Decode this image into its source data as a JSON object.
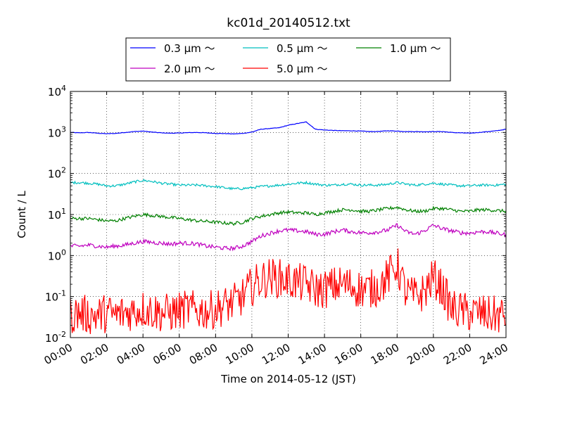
{
  "chart_data": {
    "type": "line",
    "title": "kc01d_20140512.txt",
    "xlabel": "Time on 2014-05-12 (JST)",
    "ylabel": "Count / L",
    "yscale": "log",
    "ylim": [
      0.01,
      10000
    ],
    "xlim": [
      "00:00",
      "24:00"
    ],
    "grid": true,
    "legend_position": "top-center",
    "xticks": [
      "00:00",
      "02:00",
      "04:00",
      "06:00",
      "08:00",
      "10:00",
      "12:00",
      "14:00",
      "16:00",
      "18:00",
      "20:00",
      "22:00",
      "24:00"
    ],
    "yticks": [
      {
        "value": 0.01,
        "base": "10",
        "exp": "-2"
      },
      {
        "value": 0.1,
        "base": "10",
        "exp": "-1"
      },
      {
        "value": 1,
        "base": "10",
        "exp": "0"
      },
      {
        "value": 10,
        "base": "10",
        "exp": "1"
      },
      {
        "value": 100,
        "base": "10",
        "exp": "2"
      },
      {
        "value": 1000,
        "base": "10",
        "exp": "3"
      },
      {
        "value": 10000,
        "base": "10",
        "exp": "4"
      }
    ],
    "x_hours": [
      0,
      0.5,
      1,
      1.5,
      2,
      2.5,
      3,
      3.5,
      4,
      4.5,
      5,
      5.5,
      6,
      6.5,
      7,
      7.5,
      8,
      8.5,
      9,
      9.5,
      10,
      10.5,
      11,
      11.5,
      12,
      12.5,
      13,
      13.5,
      14,
      14.5,
      15,
      15.5,
      16,
      16.5,
      17,
      17.5,
      18,
      18.5,
      19,
      19.5,
      20,
      20.5,
      21,
      21.5,
      22,
      22.5,
      23,
      23.5,
      24
    ],
    "series": [
      {
        "name": "0.3 μm ～",
        "color": "#0000ff",
        "noise": 0.0,
        "values": [
          1000,
          980,
          1000,
          960,
          930,
          950,
          1000,
          1050,
          1080,
          1020,
          980,
          960,
          970,
          990,
          1000,
          980,
          950,
          940,
          920,
          950,
          1020,
          1200,
          1250,
          1300,
          1500,
          1650,
          1800,
          1200,
          1150,
          1120,
          1100,
          1100,
          1080,
          1050,
          1060,
          1100,
          1080,
          1050,
          1050,
          1040,
          1050,
          1050,
          1000,
          980,
          960,
          1000,
          1050,
          1100,
          1200
        ]
      },
      {
        "name": "0.5 μm ～",
        "color": "#00bfbf",
        "noise": 0.03,
        "values": [
          60,
          60,
          58,
          55,
          50,
          50,
          55,
          62,
          68,
          64,
          58,
          55,
          52,
          52,
          52,
          50,
          48,
          45,
          42,
          43,
          45,
          48,
          50,
          52,
          55,
          58,
          60,
          55,
          52,
          52,
          55,
          55,
          52,
          52,
          52,
          55,
          60,
          55,
          52,
          55,
          58,
          55,
          52,
          50,
          50,
          52,
          52,
          52,
          55
        ]
      },
      {
        "name": "1.0 μm ～",
        "color": "#008000",
        "noise": 0.04,
        "values": [
          8,
          8,
          8,
          7.5,
          7,
          7,
          8,
          9,
          10,
          9.5,
          9,
          8.5,
          8,
          7.5,
          7,
          6.8,
          6.5,
          6.2,
          6,
          6.5,
          8,
          9,
          10,
          11,
          11.5,
          11,
          11,
          10,
          11,
          12,
          13,
          13,
          12,
          12,
          13,
          14,
          15,
          13,
          12,
          12,
          14,
          14,
          13,
          12,
          12,
          13,
          13,
          12.5,
          12
        ]
      },
      {
        "name": "2.0 μm ～",
        "color": "#bf00bf",
        "noise": 0.05,
        "values": [
          1.7,
          1.7,
          1.8,
          1.7,
          1.6,
          1.7,
          1.8,
          2,
          2.2,
          2.1,
          2,
          1.9,
          2,
          2,
          1.9,
          1.7,
          1.6,
          1.5,
          1.5,
          1.7,
          2.2,
          3,
          3.5,
          4,
          4.2,
          4,
          3.8,
          3.3,
          3.3,
          3.8,
          4.2,
          3.8,
          3.6,
          3.6,
          3.8,
          4.2,
          5.5,
          3.8,
          3.3,
          4,
          5.5,
          4.5,
          4,
          3.6,
          3.5,
          3.8,
          3.8,
          3.5,
          3.2
        ]
      },
      {
        "name": "5.0 μm ～",
        "color": "#ff0000",
        "noise": 0.22,
        "values": [
          0.035,
          0.04,
          0.035,
          0.035,
          0.04,
          0.035,
          0.04,
          0.045,
          0.05,
          0.045,
          0.04,
          0.04,
          0.045,
          0.05,
          0.045,
          0.045,
          0.05,
          0.06,
          0.07,
          0.1,
          0.18,
          0.25,
          0.3,
          0.28,
          0.25,
          0.22,
          0.2,
          0.15,
          0.15,
          0.18,
          0.2,
          0.18,
          0.15,
          0.15,
          0.18,
          0.3,
          0.6,
          0.12,
          0.1,
          0.13,
          0.3,
          0.15,
          0.05,
          0.045,
          0.04,
          0.04,
          0.035,
          0.035,
          0.035
        ]
      }
    ]
  }
}
